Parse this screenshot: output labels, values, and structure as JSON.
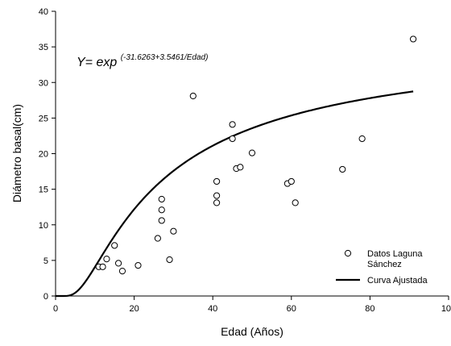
{
  "chart_data": {
    "type": "scatter",
    "xlabel": "Edad (Años)",
    "ylabel": "Diámetro basal(cm)",
    "xlim": [
      0,
      100
    ],
    "ylim": [
      0,
      40
    ],
    "x_ticks": [
      "0",
      "20",
      "40",
      "60",
      "80",
      "100"
    ],
    "y_ticks": [
      "0",
      "5",
      "10",
      "15",
      "20",
      "25",
      "30",
      "35",
      "40"
    ],
    "grid": false,
    "legend_position": "bottom-right",
    "annotation": {
      "prefix": "Y= exp",
      "exponent": "(-31.6263+3.5461/Edad)"
    },
    "series": [
      {
        "name": "Datos Laguna Sánchez",
        "kind": "scatter",
        "marker": "open-circle",
        "color": "#000000",
        "points": [
          [
            11,
            4.1
          ],
          [
            12,
            4.1
          ],
          [
            13,
            5.2
          ],
          [
            15,
            7.1
          ],
          [
            16,
            4.6
          ],
          [
            17,
            3.5
          ],
          [
            21,
            4.3
          ],
          [
            26,
            8.1
          ],
          [
            27,
            10.6
          ],
          [
            27,
            12.1
          ],
          [
            27,
            13.6
          ],
          [
            29,
            5.1
          ],
          [
            30,
            9.1
          ],
          [
            35,
            28.1
          ],
          [
            41,
            13.1
          ],
          [
            41,
            14.1
          ],
          [
            41,
            16.1
          ],
          [
            45,
            22.1
          ],
          [
            45,
            24.1
          ],
          [
            46,
            17.9
          ],
          [
            47,
            18.1
          ],
          [
            50,
            20.1
          ],
          [
            59,
            15.8
          ],
          [
            60,
            16.1
          ],
          [
            61,
            13.1
          ],
          [
            73,
            17.8
          ],
          [
            78,
            22.1
          ],
          [
            91,
            36.1
          ]
        ]
      },
      {
        "name": "Curva Ajustada",
        "kind": "line",
        "model": "Y = exp(a + b*ln(Edad)/... ) fitted",
        "color": "#000000"
      }
    ]
  }
}
